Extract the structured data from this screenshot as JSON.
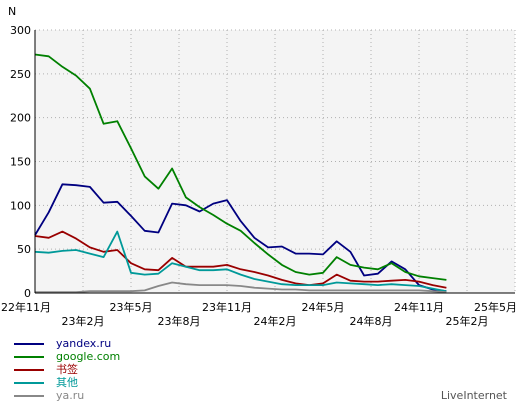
{
  "chart_data": {
    "type": "line",
    "ylabel": "N",
    "ylim": [
      0,
      300
    ],
    "yticks": [
      0,
      50,
      100,
      150,
      200,
      250,
      300
    ],
    "grid": true,
    "x_start": "22年11月",
    "x_end": "25年5月",
    "xticks_upper": [
      {
        "label": "22年11月",
        "x": 0
      },
      {
        "label": "23年5月",
        "x": 7
      },
      {
        "label": "23年11月",
        "x": 14
      },
      {
        "label": "24年5月",
        "x": 21
      },
      {
        "label": "24年11月",
        "x": 28
      },
      {
        "label": "25年5月",
        "x": 35
      }
    ],
    "xticks_lower": [
      {
        "label": "23年2月",
        "x": 3.5
      },
      {
        "label": "23年8月",
        "x": 10.5
      },
      {
        "label": "24年2月",
        "x": 17.5
      },
      {
        "label": "24年8月",
        "x": 24.5
      },
      {
        "label": "25年2月",
        "x": 31.5
      }
    ],
    "series": [
      {
        "name": "yandex.ru",
        "color": "#000080",
        "values": [
          66,
          92,
          124,
          123,
          121,
          103,
          104,
          88,
          71,
          69,
          102,
          100,
          93,
          102,
          106,
          82,
          63,
          52,
          53,
          45,
          45,
          44,
          59,
          47,
          20,
          22,
          36,
          27,
          9,
          4,
          2
        ]
      },
      {
        "name": "google.com",
        "color": "#008000",
        "values": [
          272,
          270,
          258,
          248,
          233,
          193,
          196,
          165,
          133,
          119,
          142,
          109,
          98,
          89,
          79,
          71,
          57,
          44,
          32,
          24,
          21,
          23,
          41,
          32,
          29,
          27,
          34,
          24,
          19,
          17,
          15
        ]
      },
      {
        "name": "书签",
        "color": "#990000",
        "values": [
          65,
          63,
          70,
          62,
          52,
          47,
          49,
          34,
          27,
          26,
          40,
          30,
          30,
          30,
          32,
          27,
          24,
          20,
          15,
          11,
          9,
          11,
          21,
          14,
          13,
          13,
          14,
          15,
          13,
          9,
          6
        ]
      },
      {
        "name": "其他",
        "color": "#009999",
        "values": [
          47,
          46,
          48,
          49,
          45,
          41,
          70,
          23,
          21,
          22,
          34,
          30,
          26,
          26,
          27,
          21,
          16,
          13,
          10,
          9,
          9,
          9,
          12,
          11,
          10,
          9,
          10,
          9,
          8,
          5,
          2
        ]
      },
      {
        "name": "ya.ru",
        "color": "#888888",
        "values": [
          1,
          1,
          1,
          1,
          2,
          2,
          2,
          2,
          3,
          8,
          12,
          10,
          9,
          9,
          9,
          8,
          6,
          5,
          4,
          4,
          3,
          3,
          3,
          3,
          3,
          3,
          3,
          3,
          3,
          2,
          1
        ]
      }
    ],
    "x": [
      0,
      1,
      2,
      3,
      4,
      5,
      6,
      7,
      8,
      9,
      10,
      11,
      12,
      13,
      14,
      15,
      16,
      17,
      18,
      19,
      20,
      21,
      22,
      23,
      24,
      25,
      26,
      27,
      28,
      29,
      30
    ]
  },
  "credit": "LiveInternet"
}
